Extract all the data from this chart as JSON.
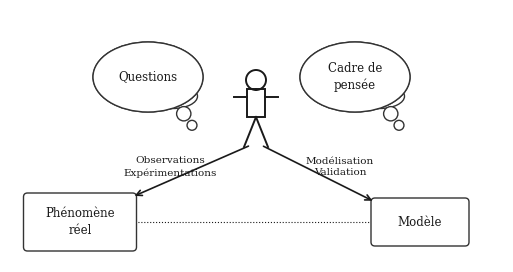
{
  "bg_color": "#ffffff",
  "text_color": "#1a1a1a",
  "box_edge_color": "#333333",
  "questions_text": "Questions",
  "cadre_text": "Cadre de\npensée",
  "obs_text": "Observations\nExpérimentations",
  "mod_text": "Modélisation\nValidation",
  "pheno_text": "Phénomène\nréel",
  "modele_text": "Modèle",
  "figw": 5.13,
  "figh": 2.72,
  "dpi": 100
}
